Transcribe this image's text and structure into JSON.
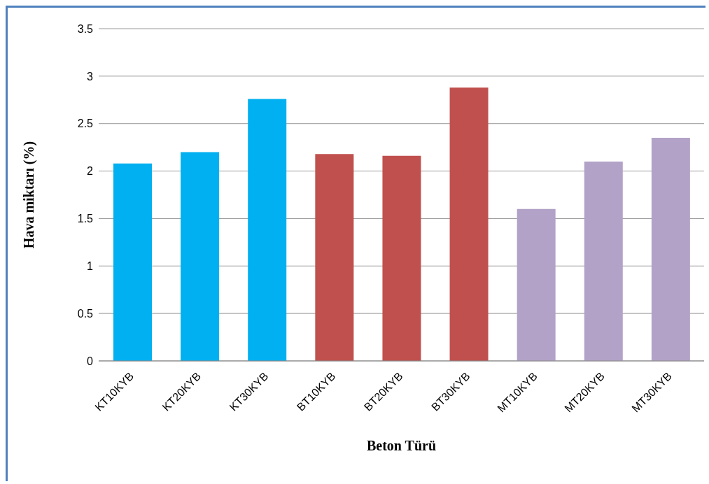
{
  "chart_data": {
    "type": "bar",
    "xlabel": "Beton Türü",
    "ylabel": "Hava miktarı (%)",
    "categories": [
      "KT10KYB",
      "KT20KYB",
      "KT30KYB",
      "BT10KYB",
      "BT20KYB",
      "BT30KYB",
      "MT10KYB",
      "MT20KYB",
      "MT30KYB"
    ],
    "values": [
      2.08,
      2.2,
      2.76,
      2.18,
      2.16,
      2.88,
      1.6,
      2.1,
      2.35
    ],
    "colors": [
      "#00b0f0",
      "#00b0f0",
      "#00b0f0",
      "#c0504d",
      "#c0504d",
      "#c0504d",
      "#b3a2c7",
      "#b3a2c7",
      "#b3a2c7"
    ],
    "ylim": [
      0,
      3.5
    ],
    "yticks": [
      0,
      0.5,
      1,
      1.5,
      2,
      2.5,
      3,
      3.5
    ],
    "grid": "y"
  }
}
